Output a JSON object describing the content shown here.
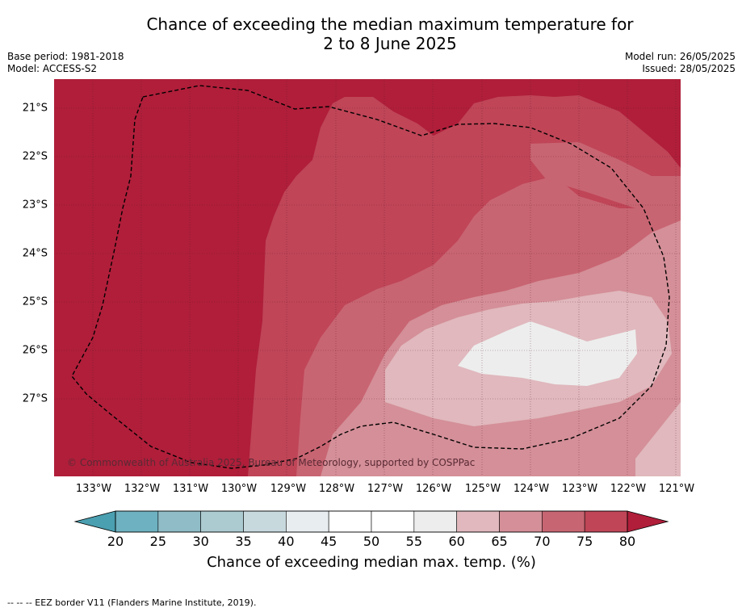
{
  "title_line1": "Chance of exceeding the median maximum temperature for",
  "title_line2": "2 to 8 June 2025",
  "meta_left": [
    "Base period: 1981-2018",
    "Model: ACCESS-S2"
  ],
  "meta_right": [
    "Model run: 26/05/2025",
    "Issued: 28/05/2025"
  ],
  "lat_labels": [
    "21°S",
    "22°S",
    "23°S",
    "24°S",
    "25°S",
    "26°S",
    "27°S"
  ],
  "lon_labels": [
    "133°W",
    "132°W",
    "131°W",
    "130°W",
    "129°W",
    "128°W",
    "127°W",
    "126°W",
    "125°W",
    "124°W",
    "123°W",
    "122°W",
    "121°W"
  ],
  "copyright": "© Commonwealth of Australia 2025, Bureau of Meteorology, supported by COSPPac",
  "colorbar": {
    "ticks": [
      "20",
      "25",
      "30",
      "35",
      "40",
      "45",
      "50",
      "55",
      "60",
      "65",
      "70",
      "75",
      "80"
    ],
    "colors": [
      "#6eb1c0",
      "#8fbcc6",
      "#abcbd1",
      "#c8d9de",
      "#e8eef0",
      "#ffffff",
      "#ffffff",
      "#ededed",
      "#e0b8bd",
      "#d48f98",
      "#c86572",
      "#bf4557"
    ],
    "low_extend_color": "#4a9fb0",
    "high_extend_color": "#b01e3a",
    "label": "Chance of exceeding median max. temp. (%)"
  },
  "footnote": "--  --  -- EEZ border V11 (Flanders Marine Institute, 2019)."
}
